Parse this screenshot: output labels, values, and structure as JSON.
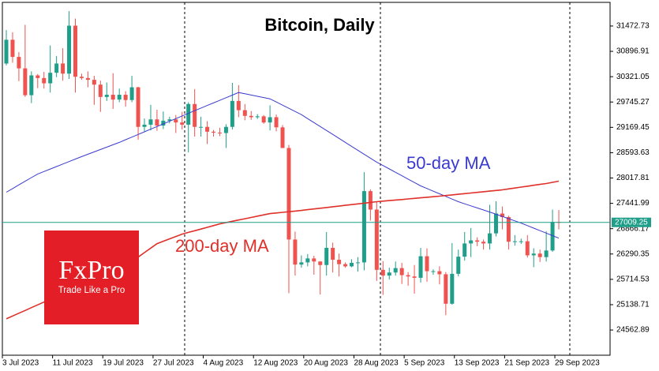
{
  "chart_data": {
    "type": "candlestick",
    "title": "Bitcoin, Daily",
    "categories": [
      "3 Jul 2023",
      null,
      null,
      null,
      null,
      null,
      null,
      null,
      "11 Jul 2023",
      null,
      null,
      null,
      null,
      null,
      null,
      null,
      "19 Jul 2023",
      null,
      null,
      null,
      null,
      null,
      null,
      null,
      "27 Jul 2023",
      null,
      null,
      null,
      null,
      null,
      null,
      null,
      "4 Aug 2023",
      null,
      null,
      null,
      null,
      null,
      null,
      null,
      "12 Aug 2023",
      null,
      null,
      null,
      null,
      null,
      null,
      null,
      "20 Aug 2023",
      null,
      null,
      null,
      null,
      null,
      null,
      null,
      "28 Aug 2023",
      null,
      null,
      null,
      null,
      null,
      null,
      null,
      "5 Sep 2023",
      null,
      null,
      null,
      null,
      null,
      null,
      null,
      "13 Sep 2023",
      null,
      null,
      null,
      null,
      null,
      null,
      null,
      "21 Sep 2023",
      null,
      null,
      null,
      null,
      null,
      null,
      null,
      "29 Sep 2023"
    ],
    "open": [
      30620,
      31160,
      30770,
      30510,
      29900,
      30350,
      30290,
      30170,
      30410,
      30620,
      30390,
      31480,
      30320,
      30290,
      30250,
      30140,
      29860,
      29910,
      29800,
      29910,
      29790,
      30080,
      29180,
      29230,
      29350,
      29210,
      29320,
      29350,
      29280,
      29230,
      29700,
      29180,
      29180,
      29070,
      29050,
      29040,
      29180,
      29770,
      29560,
      29430,
      29400,
      29420,
      29280,
      29400,
      29170,
      28700,
      26620,
      26050,
      26100,
      26190,
      26120,
      26040,
      26430,
      26160,
      26060,
      26010,
      26090,
      26100,
      27720,
      27300,
      25930,
      25800,
      25870,
      25970,
      25810,
      25780,
      25750,
      26240,
      25900,
      25900,
      25830,
      25160,
      25840,
      26230,
      26530,
      26600,
      26570,
      26530,
      26760,
      27210,
      27130,
      26570,
      26580,
      26580,
      26260,
      26300,
      26220,
      26370,
      27020
    ],
    "high": [
      31380,
      31330,
      30880,
      31500,
      30440,
      30380,
      30430,
      31030,
      30790,
      30970,
      31810,
      31640,
      30390,
      30440,
      30340,
      30230,
      30190,
      30400,
      30050,
      29990,
      30340,
      30090,
      29370,
      29680,
      29570,
      29530,
      29410,
      29450,
      29520,
      29740,
      30040,
      29410,
      29310,
      29110,
      29160,
      29240,
      30180,
      30130,
      29700,
      29540,
      29470,
      29450,
      29670,
      29460,
      29220,
      28770,
      26800,
      26260,
      26290,
      26250,
      26130,
      26790,
      26550,
      26300,
      26100,
      26170,
      26220,
      28150,
      27760,
      27480,
      26130,
      25980,
      26120,
      26090,
      25880,
      26040,
      26430,
      26420,
      25940,
      26010,
      25880,
      26540,
      26390,
      26790,
      26880,
      26670,
      26620,
      27410,
      27490,
      27370,
      27160,
      26720,
      26640,
      26720,
      26420,
      26390,
      26810,
      27300,
      27290
    ],
    "low": [
      30580,
      30640,
      30220,
      29860,
      29720,
      30060,
      30050,
      29960,
      30310,
      30230,
      30270,
      29960,
      30250,
      30080,
      29680,
      29520,
      29770,
      29590,
      29740,
      29640,
      29740,
      28890,
      29080,
      29100,
      29090,
      29130,
      29260,
      29040,
      29120,
      28600,
      28960,
      28960,
      28790,
      28960,
      28970,
      28700,
      29120,
      29400,
      29330,
      29340,
      29360,
      29250,
      29100,
      29080,
      28700,
      25400,
      25800,
      25980,
      26010,
      25820,
      25370,
      25800,
      25870,
      25780,
      25980,
      25990,
      25890,
      25920,
      27050,
      25680,
      25360,
      25710,
      25800,
      25610,
      25570,
      25390,
      25640,
      25660,
      25820,
      25600,
      24900,
      25140,
      25780,
      26140,
      26220,
      26470,
      26390,
      26390,
      26690,
      26850,
      26390,
      26480,
      26520,
      26210,
      25990,
      26110,
      26120,
      26340,
      26850
    ],
    "close": [
      31160,
      30770,
      30510,
      29900,
      30350,
      30290,
      30170,
      30410,
      30620,
      30390,
      31480,
      30320,
      30290,
      30250,
      30140,
      29860,
      29910,
      29800,
      29910,
      29790,
      30080,
      29180,
      29230,
      29350,
      29210,
      29320,
      29350,
      29280,
      29230,
      29700,
      29180,
      29180,
      29070,
      29050,
      29040,
      29180,
      29770,
      29560,
      29430,
      29400,
      29420,
      29280,
      29400,
      29170,
      28700,
      26620,
      26050,
      26100,
      26190,
      26120,
      26040,
      26430,
      26160,
      26060,
      26010,
      26090,
      26100,
      27720,
      27300,
      25930,
      25800,
      25870,
      25970,
      25810,
      25780,
      25750,
      26240,
      25900,
      25900,
      25830,
      25160,
      25840,
      26230,
      26530,
      26600,
      26570,
      26530,
      26760,
      27210,
      27130,
      26570,
      26580,
      26580,
      26260,
      26300,
      26220,
      26370,
      27020,
      27009.25
    ],
    "up_color": "#1f9e89",
    "down_color": "#ef5350",
    "lines": [
      {
        "name": "50-day MA",
        "color": "#3a3acf",
        "values": [
          27695,
          27778,
          27861,
          27944,
          28027,
          28109,
          28165,
          28222,
          28278,
          28335,
          28391,
          28448,
          28504,
          28558,
          28612,
          28666,
          28720,
          28774,
          28828,
          28888,
          28948,
          29008,
          29068,
          29128,
          29188,
          29248,
          29308,
          29368,
          29428,
          29488,
          29548,
          29607,
          29666,
          29725,
          29784,
          29843,
          29902,
          29961,
          29932,
          29904,
          29875,
          29847,
          29818,
          29746,
          29674,
          29602,
          29530,
          29458,
          29368,
          29278,
          29188,
          29098,
          29008,
          28918,
          28828,
          28738,
          28648,
          28558,
          28468,
          28378,
          28301,
          28224,
          28147,
          28070,
          27993,
          27916,
          27839,
          27779,
          27719,
          27659,
          27599,
          27539,
          27479,
          27432,
          27385,
          27338,
          27291,
          27245,
          27195,
          27144,
          27094,
          27043,
          26993,
          26936,
          26879,
          26822,
          26765,
          26708,
          26651
        ]
      },
      {
        "name": "200-day MA",
        "color": "#e0302a",
        "values": [
          24817,
          24881,
          24944,
          25008,
          25071,
          25135,
          25198,
          25262,
          25322,
          25382,
          25441,
          25501,
          25561,
          25620,
          25680,
          25757,
          25834,
          25911,
          25989,
          26066,
          26143,
          26220,
          26322,
          26424,
          26526,
          26580,
          26634,
          26688,
          26742,
          26781,
          26820,
          26858,
          26897,
          26936,
          26975,
          27004,
          27034,
          27063,
          27092,
          27121,
          27151,
          27180,
          27209,
          27223,
          27238,
          27252,
          27267,
          27281,
          27298,
          27314,
          27331,
          27347,
          27364,
          27380,
          27397,
          27413,
          27430,
          27446,
          27463,
          27479,
          27492,
          27504,
          27517,
          27529,
          27542,
          27555,
          27567,
          27580,
          27592,
          27605,
          27619,
          27634,
          27648,
          27663,
          27677,
          27691,
          27706,
          27720,
          27735,
          27749,
          27770,
          27790,
          27811,
          27831,
          27852,
          27872,
          27893,
          27920,
          27947
        ]
      }
    ],
    "last_price": 27009.25,
    "last_price_color": "#1f9e89",
    "ylim": [
      23990,
      32010
    ],
    "yticks": [
      31472.73,
      30896.91,
      30321.05,
      29745.27,
      29169.45,
      28593.63,
      28017.81,
      27441.99,
      26866.17,
      26290.35,
      25714.53,
      25138.71,
      24562.89
    ]
  },
  "logo": {
    "brand": "FxPro",
    "tagline": "Trade Like a Pro"
  }
}
